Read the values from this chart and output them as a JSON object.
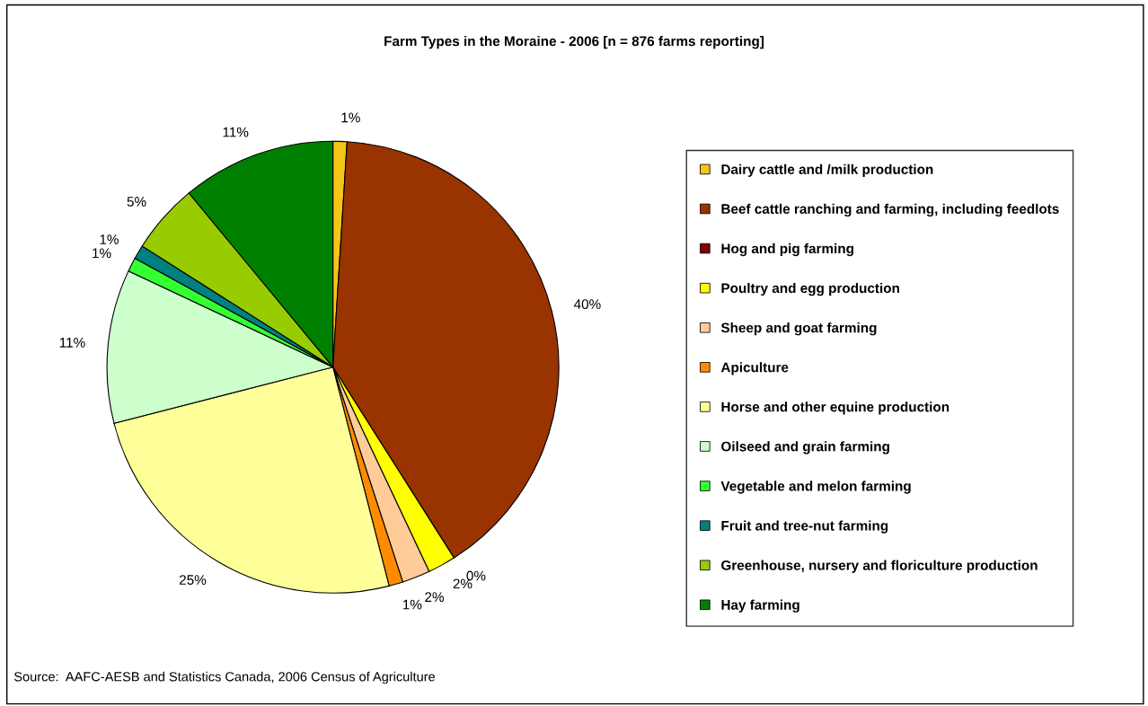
{
  "chart_data": {
    "type": "pie",
    "title": "Farm Types in the Moraine - 2006 [n = 876 farms reporting]",
    "categories": [
      "Dairy cattle and /milk production",
      "Beef cattle ranching and farming, including feedlots",
      "Hog and pig farming",
      "Poultry and egg production",
      "Sheep and goat farming",
      "Apiculture",
      "Horse and other equine production",
      "Oilseed and grain farming",
      "Vegetable and melon farming",
      "Fruit and tree-nut farming",
      "Greenhouse, nursery and floriculture production",
      "Hay farming"
    ],
    "values": [
      1,
      40,
      0,
      2,
      2,
      1,
      25,
      11,
      1,
      1,
      5,
      11
    ],
    "value_labels": [
      "1%",
      "40%",
      "0%",
      "2%",
      "2%",
      "1%",
      "25%",
      "11%",
      "1%",
      "1%",
      "5%",
      "11%"
    ],
    "colors": [
      "#f5c518",
      "#993300",
      "#800000",
      "#ffff00",
      "#ffcc99",
      "#ff8c00",
      "#ffff99",
      "#ccffcc",
      "#33ff33",
      "#008080",
      "#99cc00",
      "#008000"
    ],
    "legend": "right",
    "annotations": [
      "Source:  AAFC-AESB and Statistics Canada, 2006 Census of Agriculture"
    ]
  }
}
